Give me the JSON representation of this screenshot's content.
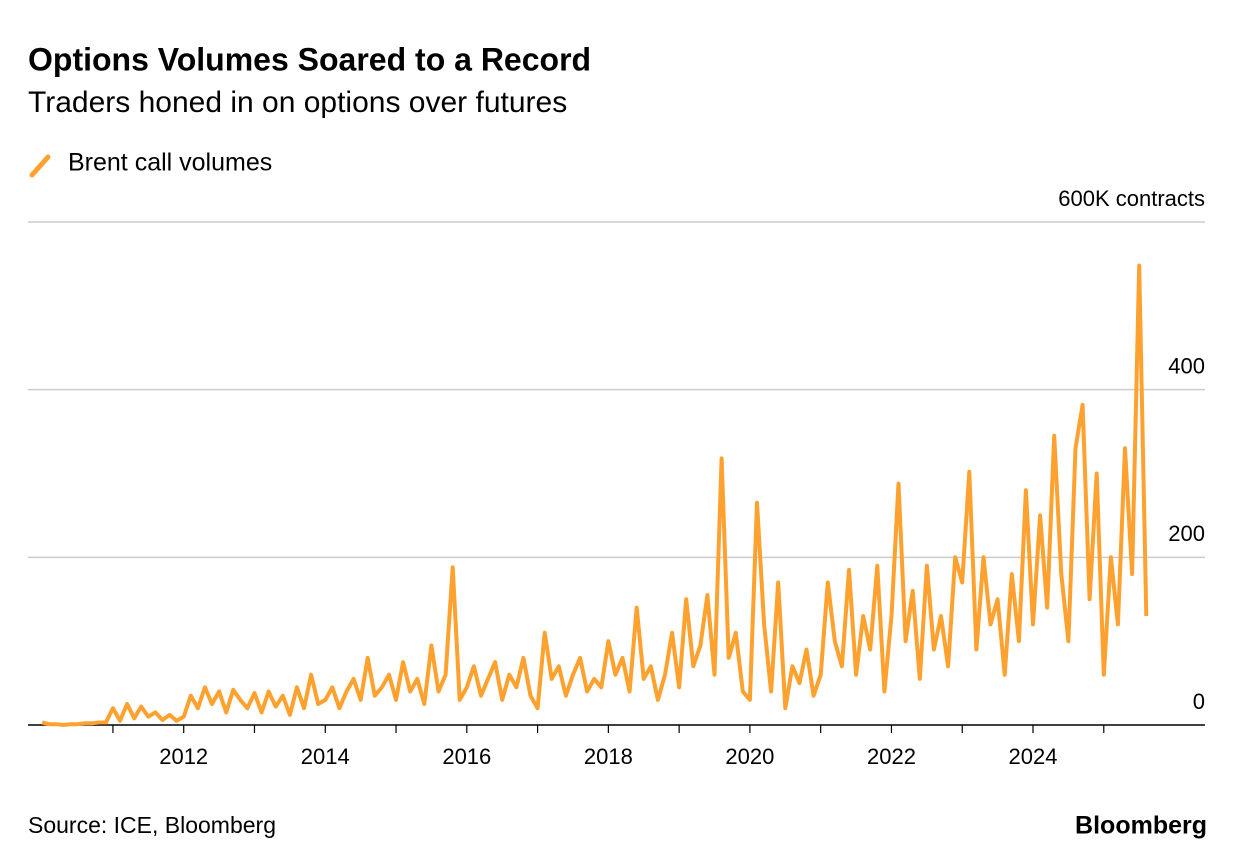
{
  "chart_data": {
    "type": "line",
    "title": "Options Volumes Soared to a Record",
    "subtitle": "Traders honed in on options over futures",
    "source": "Source: ICE, Bloomberg",
    "brand": "Bloomberg",
    "x": [
      2010,
      2010.1,
      2010.2,
      2010.3,
      2010.4,
      2010.5,
      2010.6,
      2010.7,
      2010.8,
      2010.9,
      2011,
      2011.1,
      2011.2,
      2011.3,
      2011.4,
      2011.5,
      2011.6,
      2011.7,
      2011.8,
      2011.9,
      2012,
      2012.1,
      2012.2,
      2012.3,
      2012.4,
      2012.5,
      2012.6,
      2012.7,
      2012.8,
      2012.9,
      2013,
      2013.1,
      2013.2,
      2013.3,
      2013.4,
      2013.5,
      2013.6,
      2013.7,
      2013.8,
      2013.9,
      2014,
      2014.1,
      2014.2,
      2014.3,
      2014.4,
      2014.5,
      2014.6,
      2014.7,
      2014.8,
      2014.9,
      2015,
      2015.1,
      2015.2,
      2015.3,
      2015.4,
      2015.5,
      2015.6,
      2015.7,
      2015.8,
      2015.9,
      2016,
      2016.1,
      2016.2,
      2016.3,
      2016.4,
      2016.5,
      2016.6,
      2016.7,
      2016.8,
      2016.9,
      2017,
      2017.1,
      2017.2,
      2017.3,
      2017.4,
      2017.5,
      2017.6,
      2017.7,
      2017.8,
      2017.9,
      2018,
      2018.1,
      2018.2,
      2018.3,
      2018.4,
      2018.5,
      2018.6,
      2018.7,
      2018.8,
      2018.9,
      2019,
      2019.1,
      2019.2,
      2019.3,
      2019.4,
      2019.5,
      2019.6,
      2019.7,
      2019.8,
      2019.9,
      2020,
      2020.1,
      2020.2,
      2020.3,
      2020.4,
      2020.5,
      2020.6,
      2020.7,
      2020.8,
      2020.9,
      2021,
      2021.1,
      2021.2,
      2021.3,
      2021.4,
      2021.5,
      2021.6,
      2021.7,
      2021.8,
      2021.9,
      2022,
      2022.1,
      2022.2,
      2022.3,
      2022.4,
      2022.5,
      2022.6,
      2022.7,
      2022.8,
      2022.9,
      2023,
      2023.1,
      2023.2,
      2023.3,
      2023.4,
      2023.5,
      2023.6,
      2023.7,
      2023.8,
      2023.9,
      2024,
      2024.1,
      2024.2,
      2024.3,
      2024.4,
      2024.5,
      2024.6,
      2024.7,
      2024.8,
      2024.9,
      2025,
      2025.1,
      2025.2,
      2025.3,
      2025.4,
      2025.5,
      2025.6
    ],
    "series": [
      {
        "name": "Brent call volumes",
        "color": "#ffa12f",
        "values": [
          3,
          1,
          1,
          0,
          1,
          1,
          2,
          2,
          3,
          3,
          20,
          5,
          25,
          8,
          22,
          10,
          15,
          6,
          12,
          5,
          10,
          35,
          20,
          45,
          25,
          40,
          15,
          42,
          30,
          20,
          38,
          15,
          40,
          22,
          35,
          12,
          45,
          20,
          60,
          25,
          30,
          45,
          20,
          40,
          55,
          30,
          80,
          35,
          45,
          60,
          30,
          75,
          40,
          55,
          25,
          95,
          40,
          60,
          188,
          30,
          45,
          70,
          35,
          55,
          75,
          30,
          60,
          45,
          80,
          35,
          20,
          110,
          55,
          70,
          35,
          60,
          80,
          40,
          55,
          45,
          100,
          60,
          80,
          40,
          140,
          55,
          70,
          30,
          60,
          110,
          45,
          150,
          70,
          95,
          155,
          60,
          318,
          80,
          110,
          40,
          30,
          265,
          120,
          40,
          170,
          20,
          70,
          50,
          90,
          35,
          60,
          170,
          100,
          70,
          185,
          60,
          130,
          90,
          190,
          40,
          130,
          288,
          100,
          160,
          55,
          190,
          90,
          130,
          70,
          200,
          170,
          302,
          90,
          200,
          120,
          150,
          60,
          180,
          100,
          280,
          120,
          250,
          140,
          345,
          180,
          100,
          330,
          382,
          150,
          300,
          60,
          200,
          120,
          330,
          180,
          548,
          130
        ]
      }
    ],
    "xlim": [
      2009.8,
      2026.43
    ],
    "xticks": [
      2012,
      2014,
      2016,
      2018,
      2020,
      2022,
      2024
    ],
    "ylim": [
      0,
      600
    ],
    "yticks": [
      0,
      200,
      400,
      {
        "value": 600,
        "label": "600K contracts"
      }
    ],
    "grid": true
  }
}
